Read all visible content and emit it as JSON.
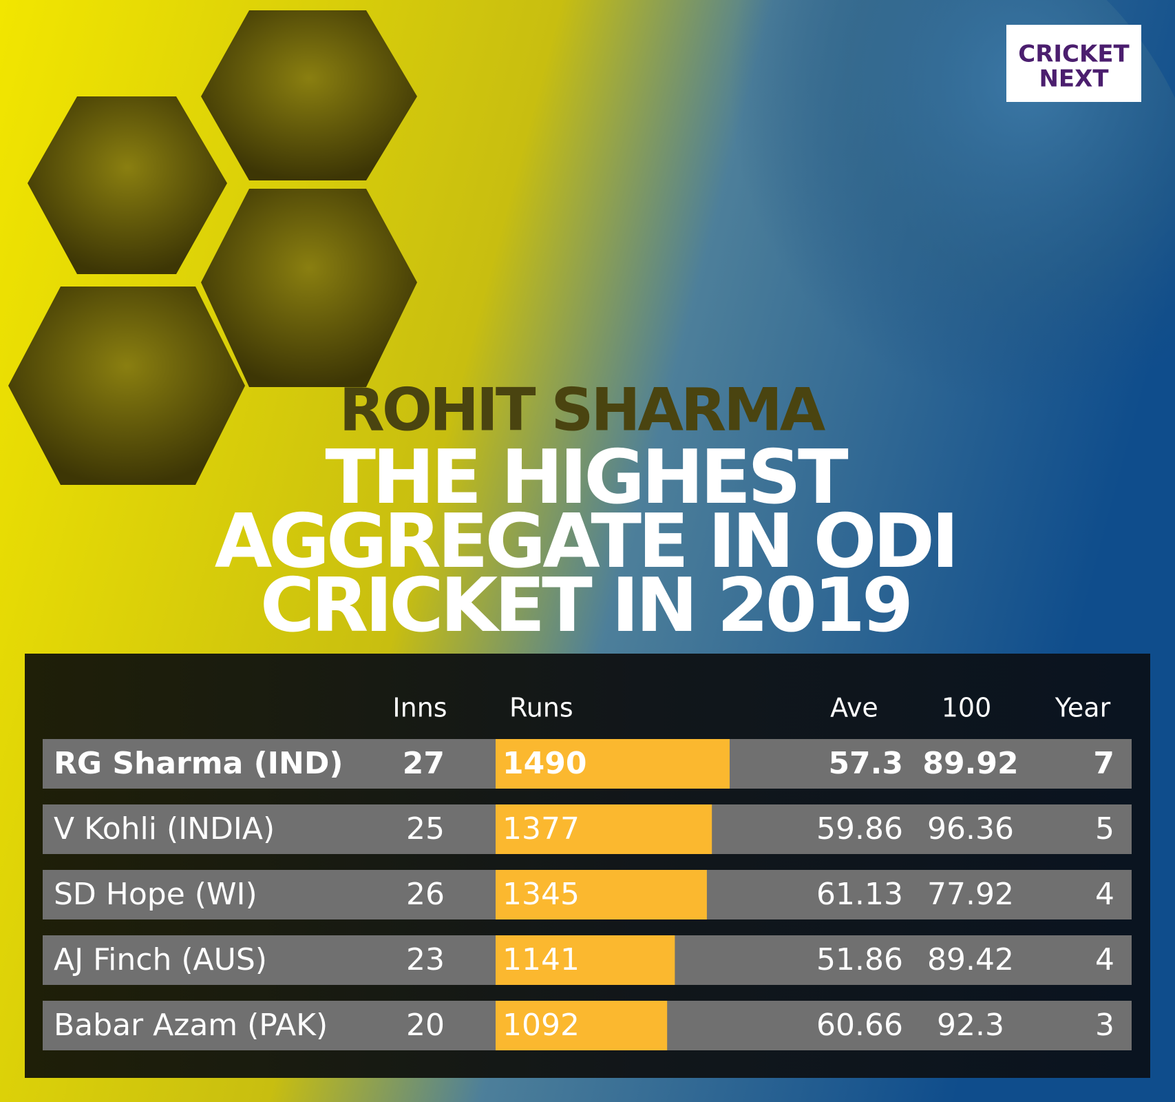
{
  "logo": {
    "line1": "CRICKET",
    "line2": "NEXT"
  },
  "title": {
    "kicker": "ROHIT SHARMA",
    "lines": [
      "THE HIGHEST",
      "AGGREGATE IN ODI",
      "CRICKET IN 2019"
    ]
  },
  "table": {
    "header": [
      "Inns",
      "Runs",
      "Ave",
      "100",
      "Year"
    ],
    "rows": [
      {
        "name": "RG Sharma (IND)",
        "inns": 27,
        "runs": 1490,
        "ave": 57.3,
        "col4": 89.92,
        "col5": 7
      },
      {
        "name": "V Kohli (INDIA)",
        "inns": 25,
        "runs": 1377,
        "ave": 59.86,
        "col4": 96.36,
        "col5": 5
      },
      {
        "name": "SD Hope (WI)",
        "inns": 26,
        "runs": 1345,
        "ave": 61.13,
        "col4": 77.92,
        "col5": 4
      },
      {
        "name": "AJ Finch (AUS)",
        "inns": 23,
        "runs": 1141,
        "ave": 51.86,
        "col4": 89.42,
        "col5": 4
      },
      {
        "name": "Babar Azam (PAK)",
        "inns": 20,
        "runs": 1092,
        "ave": 60.66,
        "col4": 92.3,
        "col5": 3
      }
    ]
  }
}
